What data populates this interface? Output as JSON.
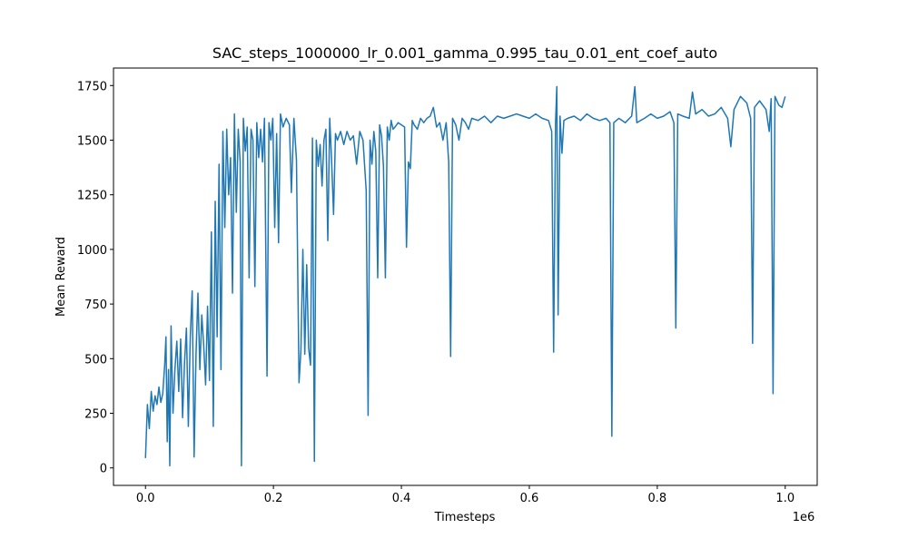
{
  "chart_data": {
    "type": "line",
    "title": "SAC_steps_1000000_lr_0.001_gamma_0.995_tau_0.01_ent_coef_auto",
    "x_label": "Timesteps",
    "y_label": "Mean Reward",
    "x_offset_label": "1e6",
    "color": "#1f77b4",
    "xlim": [
      -50000,
      1050000
    ],
    "xticks": [
      {
        "value": 0,
        "label": "0.0"
      },
      {
        "value": 200000,
        "label": "0.2"
      },
      {
        "value": 400000,
        "label": "0.4"
      },
      {
        "value": 600000,
        "label": "0.6"
      },
      {
        "value": 800000,
        "label": "0.8"
      },
      {
        "value": 1000000,
        "label": "1.0"
      }
    ],
    "ylim": [
      -80,
      1830
    ],
    "yticks": [
      0,
      250,
      500,
      750,
      1000,
      1250,
      1500,
      1750
    ],
    "grid": false,
    "x": [
      0,
      3000,
      6000,
      9000,
      12000,
      15000,
      18000,
      21000,
      24000,
      27000,
      30000,
      32000,
      34000,
      36000,
      38000,
      40000,
      43000,
      46000,
      49000,
      52000,
      55000,
      58000,
      61000,
      64000,
      67000,
      70000,
      73000,
      76000,
      79000,
      82000,
      85000,
      88000,
      91000,
      94000,
      97000,
      100000,
      103000,
      106000,
      109000,
      112000,
      115000,
      118000,
      121000,
      124000,
      127000,
      130000,
      133000,
      136000,
      139000,
      142000,
      145000,
      148000,
      150000,
      153000,
      156000,
      159000,
      162000,
      165000,
      168000,
      171000,
      174000,
      177000,
      180000,
      183000,
      186000,
      190000,
      193000,
      196000,
      199000,
      202000,
      205000,
      208000,
      211000,
      215000,
      220000,
      225000,
      228000,
      232000,
      236000,
      240000,
      243000,
      246000,
      249000,
      252000,
      255000,
      258000,
      261000,
      264000,
      267000,
      270000,
      273000,
      276000,
      279000,
      282000,
      285000,
      288000,
      291000,
      294000,
      297000,
      300000,
      305000,
      310000,
      315000,
      320000,
      325000,
      330000,
      335000,
      340000,
      345000,
      348000,
      351000,
      354000,
      357000,
      360000,
      363000,
      366000,
      369000,
      372000,
      375000,
      378000,
      381000,
      384000,
      387000,
      390000,
      395000,
      400000,
      405000,
      408000,
      411000,
      414000,
      417000,
      420000,
      425000,
      430000,
      435000,
      440000,
      445000,
      450000,
      455000,
      460000,
      465000,
      470000,
      474000,
      477000,
      480000,
      485000,
      490000,
      495000,
      500000,
      505000,
      510000,
      520000,
      530000,
      540000,
      550000,
      560000,
      570000,
      580000,
      590000,
      600000,
      610000,
      620000,
      630000,
      635000,
      638000,
      641000,
      643000,
      645000,
      648000,
      651000,
      654000,
      660000,
      670000,
      680000,
      690000,
      700000,
      710000,
      720000,
      726000,
      729000,
      732000,
      740000,
      750000,
      760000,
      765000,
      768000,
      780000,
      790000,
      800000,
      810000,
      820000,
      826000,
      829000,
      832000,
      840000,
      850000,
      855000,
      860000,
      870000,
      880000,
      890000,
      900000,
      910000,
      915000,
      920000,
      930000,
      940000,
      946000,
      949000,
      952000,
      960000,
      970000,
      975000,
      978000,
      981000,
      984000,
      990000,
      995000,
      1000000
    ],
    "values": [
      45,
      290,
      180,
      350,
      260,
      330,
      290,
      370,
      300,
      340,
      470,
      600,
      120,
      450,
      10,
      650,
      250,
      450,
      580,
      350,
      590,
      230,
      480,
      640,
      190,
      600,
      810,
      50,
      520,
      800,
      450,
      700,
      560,
      380,
      740,
      400,
      1080,
      190,
      1220,
      600,
      1390,
      450,
      1540,
      1100,
      1550,
      1250,
      1420,
      800,
      1620,
      1170,
      1550,
      1400,
      10,
      1600,
      1450,
      1560,
      870,
      1550,
      1500,
      830,
      1580,
      1420,
      1550,
      1400,
      1600,
      420,
      1580,
      1500,
      1600,
      1100,
      1530,
      1030,
      1620,
      1560,
      1600,
      1570,
      1260,
      1600,
      1410,
      390,
      540,
      1000,
      520,
      930,
      550,
      470,
      1510,
      30,
      1500,
      1380,
      1480,
      1290,
      1500,
      1550,
      1040,
      1600,
      1400,
      1160,
      1530,
      1500,
      1540,
      1480,
      1540,
      1500,
      1520,
      1390,
      1540,
      1500,
      1270,
      240,
      1500,
      1390,
      1540,
      1450,
      870,
      1570,
      1520,
      1380,
      870,
      1560,
      1500,
      1590,
      1550,
      1560,
      1580,
      1570,
      1560,
      1010,
      1400,
      1370,
      1590,
      1570,
      1550,
      1600,
      1580,
      1600,
      1610,
      1650,
      1560,
      1580,
      1500,
      1580,
      1400,
      510,
      1600,
      1570,
      1500,
      1600,
      1580,
      1550,
      1600,
      1590,
      1610,
      1580,
      1610,
      1600,
      1610,
      1620,
      1610,
      1600,
      1620,
      1600,
      1590,
      1540,
      530,
      1580,
      1745,
      700,
      1610,
      1440,
      1590,
      1600,
      1610,
      1590,
      1620,
      1600,
      1590,
      1600,
      1580,
      145,
      1580,
      1600,
      1580,
      1610,
      1745,
      1580,
      1600,
      1620,
      1600,
      1610,
      1630,
      1580,
      640,
      1620,
      1610,
      1600,
      1720,
      1620,
      1640,
      1610,
      1620,
      1650,
      1600,
      1470,
      1640,
      1700,
      1670,
      1600,
      570,
      1650,
      1680,
      1640,
      1540,
      1690,
      340,
      1700,
      1660,
      1650,
      1700
    ]
  }
}
